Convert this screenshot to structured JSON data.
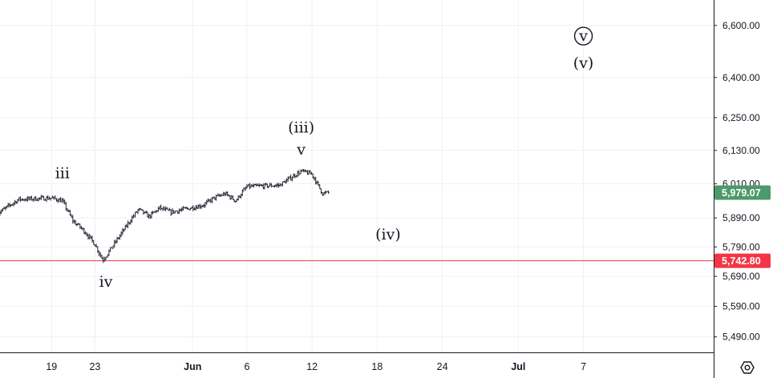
{
  "chart_data": {
    "type": "line",
    "style": "ohlc-bars",
    "y_ticks": [
      "6,600.00",
      "6,400.00",
      "6,250.00",
      "6,130.00",
      "6,010.00",
      "5,890.00",
      "5,790.00",
      "5,690.00",
      "5,590.00",
      "5,490.00"
    ],
    "y_tick_values": [
      6600,
      6400,
      6250,
      6130,
      6010,
      5890,
      5790,
      5690,
      5590,
      5490
    ],
    "ylim": [
      5440,
      6700
    ],
    "y_scale": "log",
    "x_ticks": [
      {
        "label": "19",
        "date": "2025-05-19",
        "bold": false
      },
      {
        "label": "23",
        "date": "2025-05-23",
        "bold": false
      },
      {
        "label": "Jun",
        "date": "2025-06-01",
        "bold": true
      },
      {
        "label": "6",
        "date": "2025-06-06",
        "bold": false
      },
      {
        "label": "12",
        "date": "2025-06-12",
        "bold": false
      },
      {
        "label": "18",
        "date": "2025-06-18",
        "bold": false
      },
      {
        "label": "24",
        "date": "2025-06-24",
        "bold": false
      },
      {
        "label": "Jul",
        "date": "2025-07-01",
        "bold": true
      },
      {
        "label": "7",
        "date": "2025-07-07",
        "bold": false
      }
    ],
    "price_path": [
      {
        "x": "2025-05-14",
        "y": 5905
      },
      {
        "x": "2025-05-15",
        "y": 5930
      },
      {
        "x": "2025-05-16",
        "y": 5955
      },
      {
        "x": "2025-05-19",
        "y": 5960
      },
      {
        "x": "2025-05-20",
        "y": 5950
      },
      {
        "x": "2025-05-21",
        "y": 5880
      },
      {
        "x": "2025-05-22",
        "y": 5845
      },
      {
        "x": "2025-05-23",
        "y": 5800
      },
      {
        "x": "2025-05-23T18",
        "y": 5745
      },
      {
        "x": "2025-05-27",
        "y": 5920
      },
      {
        "x": "2025-05-28",
        "y": 5895
      },
      {
        "x": "2025-05-29",
        "y": 5925
      },
      {
        "x": "2025-05-30",
        "y": 5910
      },
      {
        "x": "2025-06-02",
        "y": 5935
      },
      {
        "x": "2025-06-03",
        "y": 5960
      },
      {
        "x": "2025-06-04",
        "y": 5975
      },
      {
        "x": "2025-06-05",
        "y": 5950
      },
      {
        "x": "2025-06-06",
        "y": 6000
      },
      {
        "x": "2025-06-09",
        "y": 6005
      },
      {
        "x": "2025-06-10",
        "y": 6030
      },
      {
        "x": "2025-06-11",
        "y": 6055
      },
      {
        "x": "2025-06-12",
        "y": 6045
      },
      {
        "x": "2025-06-13",
        "y": 5975
      },
      {
        "x": "2025-06-13T12",
        "y": 5979.07
      }
    ],
    "last_price": {
      "value": 5979.07,
      "label": "5,979.07",
      "color": "#4c9a6a"
    },
    "horizontal_line": {
      "value": 5742.8,
      "label": "5,742.80",
      "color": "#f23645"
    },
    "wave_labels": [
      {
        "text": "iii",
        "x": "2025-05-20",
        "y": 6030,
        "circled": false
      },
      {
        "text": "iv",
        "x": "2025-05-24",
        "y": 5655,
        "circled": false
      },
      {
        "text": "(iii)",
        "x": "2025-06-11",
        "y": 6195,
        "circled": false
      },
      {
        "text": "v",
        "x": "2025-06-11",
        "y": 6115,
        "circled": false
      },
      {
        "text": "(iv)",
        "x": "2025-06-19",
        "y": 5815,
        "circled": false
      },
      {
        "text": "v",
        "x": "2025-07-07",
        "y": 6540,
        "circled": true
      },
      {
        "text": "(v)",
        "x": "2025-07-07",
        "y": 6435,
        "circled": false
      }
    ],
    "colors": {
      "grid": "#eef0f3",
      "axis": "#131722",
      "bars": "#202530"
    }
  }
}
